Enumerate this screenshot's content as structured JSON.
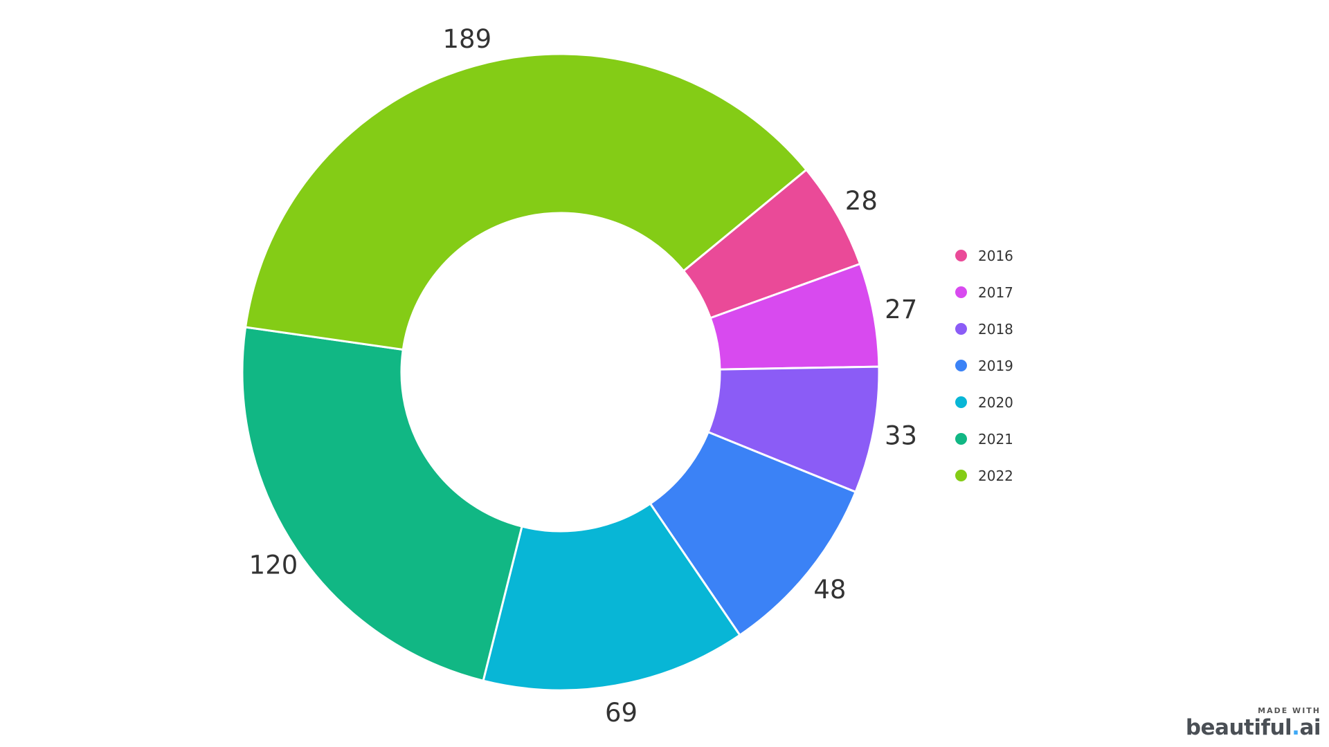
{
  "chart_data": {
    "type": "pie",
    "variant": "donut",
    "categories": [
      "2016",
      "2017",
      "2018",
      "2019",
      "2020",
      "2021",
      "2022"
    ],
    "values": [
      28,
      27,
      33,
      48,
      69,
      120,
      189
    ],
    "colors": [
      "#EA4A98",
      "#D84AEF",
      "#8B5CF6",
      "#3B82F6",
      "#08B6D6",
      "#11B784",
      "#84CC16"
    ],
    "title": "",
    "legend_position": "right",
    "data_labels": true
  },
  "watermark": {
    "small": "MADE WITH",
    "logo_main": "beautiful",
    "logo_dot": ".",
    "logo_tail": "ai"
  }
}
